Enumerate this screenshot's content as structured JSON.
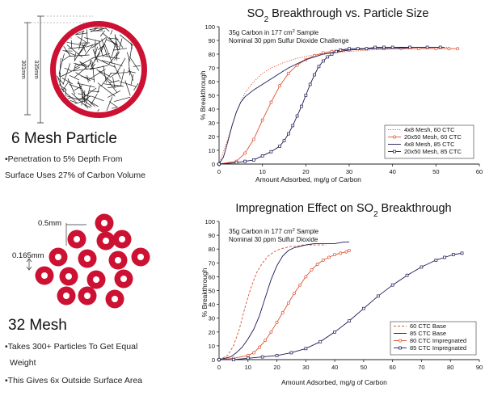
{
  "left_panel": {
    "mesh6": {
      "title": "6 Mesh Particle",
      "dim_outer": "335mm",
      "dim_inner": "301mm",
      "bullets": [
        "•Penetration to 5% Depth From",
        "Surface Uses 27% of Carbon Volume"
      ]
    },
    "mesh32": {
      "title": "32 Mesh",
      "dim_width": "0.5mm",
      "dim_gap": "0.165mm",
      "bullets": [
        "•Takes 300+ Particles To Get Equal",
        "Weight",
        "•This Gives 6x Outside Surface Area"
      ]
    },
    "colors": {
      "particle_red": "#cc1133",
      "particle_inner": "#ffffff"
    }
  },
  "chart_data": [
    {
      "type": "line",
      "title": "SO2 Breakthrough vs. Particle Size",
      "title_parts": [
        "SO",
        "2",
        " Breakthrough vs. Particle Size"
      ],
      "xlabel": "Amount Adsorbed, mg/g of Carbon",
      "ylabel": "% Breakthrough",
      "xlim": [
        0,
        60
      ],
      "ylim": [
        0,
        100
      ],
      "xticks": [
        0,
        10,
        20,
        30,
        40,
        50,
        60
      ],
      "yticks": [
        0,
        10,
        20,
        30,
        40,
        50,
        60,
        70,
        80,
        90,
        100
      ],
      "grid": false,
      "annotation_line1": [
        "35g Carbon in 177 cm",
        "2",
        " Sample"
      ],
      "annotation_line2": "Nominal 30 ppm Sulfur Dioxide Challenge",
      "legend_position": "bottom-right",
      "series": [
        {
          "name": "4x8 Mesh, 60 CTC",
          "color": "#e05030",
          "style": "dotted",
          "marker": "none",
          "x": [
            0,
            2,
            4,
            6,
            8,
            10,
            12,
            15,
            18,
            21,
            24,
            27,
            30,
            35,
            40,
            45,
            50,
            53
          ],
          "y": [
            0,
            18,
            38,
            52,
            60,
            66,
            70,
            74,
            77,
            79,
            80,
            81,
            82,
            83,
            84,
            84,
            85,
            85
          ]
        },
        {
          "name": "20x50 Mesh, 60 CTC",
          "color": "#e05030",
          "style": "solid",
          "marker": "circle",
          "x": [
            0,
            4,
            6,
            8,
            10,
            12,
            14,
            16,
            18,
            20,
            22,
            24,
            26,
            28,
            30,
            34,
            38,
            42,
            46,
            50,
            53,
            55
          ],
          "y": [
            0,
            2,
            8,
            18,
            32,
            45,
            57,
            66,
            72,
            76,
            79,
            81,
            82,
            83,
            83,
            84,
            84,
            84,
            84,
            84,
            84,
            84
          ]
        },
        {
          "name": "4x8 Mesh, 85 CTC",
          "color": "#1a1a55",
          "style": "solid",
          "marker": "none",
          "x": [
            0,
            1,
            2,
            3,
            4,
            5,
            6,
            8,
            10,
            12,
            14,
            16,
            18,
            20,
            22,
            24,
            26,
            28,
            30,
            35,
            40,
            45,
            50,
            52
          ],
          "y": [
            0,
            5,
            16,
            28,
            38,
            45,
            49,
            54,
            58,
            62,
            66,
            70,
            73,
            76,
            78,
            80,
            81,
            82,
            83,
            84,
            84,
            85,
            85,
            85
          ]
        },
        {
          "name": "20x50 Mesh, 85 CTC",
          "color": "#1a1a55",
          "style": "solid",
          "marker": "square",
          "x": [
            0,
            4,
            6,
            8,
            10,
            12,
            14,
            15,
            16,
            17,
            18,
            19,
            20,
            21,
            22,
            23,
            24,
            25,
            26,
            27,
            28,
            30,
            32,
            34,
            36,
            38,
            40,
            44,
            48,
            51
          ],
          "y": [
            0,
            1,
            2,
            3,
            6,
            9,
            13,
            17,
            22,
            28,
            35,
            42,
            50,
            58,
            65,
            71,
            75,
            78,
            80,
            82,
            83,
            84,
            84,
            84,
            85,
            85,
            85,
            85,
            85,
            85
          ]
        }
      ]
    },
    {
      "type": "line",
      "title": "Impregnation Effect on SO2 Breakthrough",
      "title_parts": [
        "Impregnation Effect on SO",
        "2",
        " Breakthrough"
      ],
      "xlabel": "Amount Adsorbed, mg/g of Carbon",
      "ylabel": "% Breakthrough",
      "xlim": [
        0,
        90
      ],
      "ylim": [
        0,
        100
      ],
      "xticks": [
        0,
        10,
        20,
        30,
        40,
        50,
        60,
        70,
        80,
        90
      ],
      "yticks": [
        0,
        10,
        20,
        30,
        40,
        50,
        60,
        70,
        80,
        90,
        100
      ],
      "grid": false,
      "annotation_line1": [
        "35g Carbon in 177 cm",
        "2",
        " Sample"
      ],
      "annotation_line2": "Nominal 30 ppm Sulfur Dioxide",
      "legend_position": "bottom-right",
      "series": [
        {
          "name": "60 CTC Base",
          "color": "#e05030",
          "style": "dashed",
          "marker": "none",
          "x": [
            0,
            3,
            5,
            7,
            9,
            11,
            13,
            15,
            17,
            19,
            21,
            23,
            25,
            27,
            29,
            31,
            34,
            37
          ],
          "y": [
            0,
            3,
            10,
            22,
            38,
            52,
            63,
            70,
            75,
            78,
            80,
            81,
            82,
            82,
            83,
            83,
            83,
            83
          ]
        },
        {
          "name": "85 CTC Base",
          "color": "#1a1a55",
          "style": "solid",
          "marker": "none",
          "x": [
            0,
            4,
            6,
            8,
            10,
            12,
            14,
            16,
            18,
            20,
            22,
            24,
            26,
            28,
            30,
            33,
            36,
            40,
            43,
            45
          ],
          "y": [
            0,
            2,
            5,
            9,
            15,
            22,
            32,
            45,
            58,
            68,
            75,
            79,
            81,
            82,
            83,
            84,
            84,
            84,
            85,
            85
          ]
        },
        {
          "name": "80 CTC Impregnated",
          "color": "#e05030",
          "style": "solid",
          "marker": "circle",
          "x": [
            0,
            5,
            10,
            12,
            14,
            16,
            18,
            20,
            22,
            24,
            26,
            28,
            30,
            32,
            34,
            36,
            38,
            40,
            42,
            44,
            45
          ],
          "y": [
            0,
            1,
            3,
            5,
            9,
            14,
            20,
            27,
            34,
            41,
            48,
            54,
            60,
            65,
            69,
            72,
            74,
            76,
            77,
            78,
            79
          ]
        },
        {
          "name": "85 CTC Impregnated",
          "color": "#1a1a55",
          "style": "solid",
          "marker": "square",
          "x": [
            0,
            5,
            10,
            15,
            20,
            25,
            30,
            35,
            40,
            45,
            50,
            55,
            60,
            65,
            70,
            75,
            78,
            81,
            84
          ],
          "y": [
            0,
            0,
            1,
            2,
            3,
            5,
            8,
            13,
            20,
            28,
            37,
            46,
            54,
            61,
            67,
            72,
            74,
            76,
            77
          ]
        }
      ]
    }
  ]
}
